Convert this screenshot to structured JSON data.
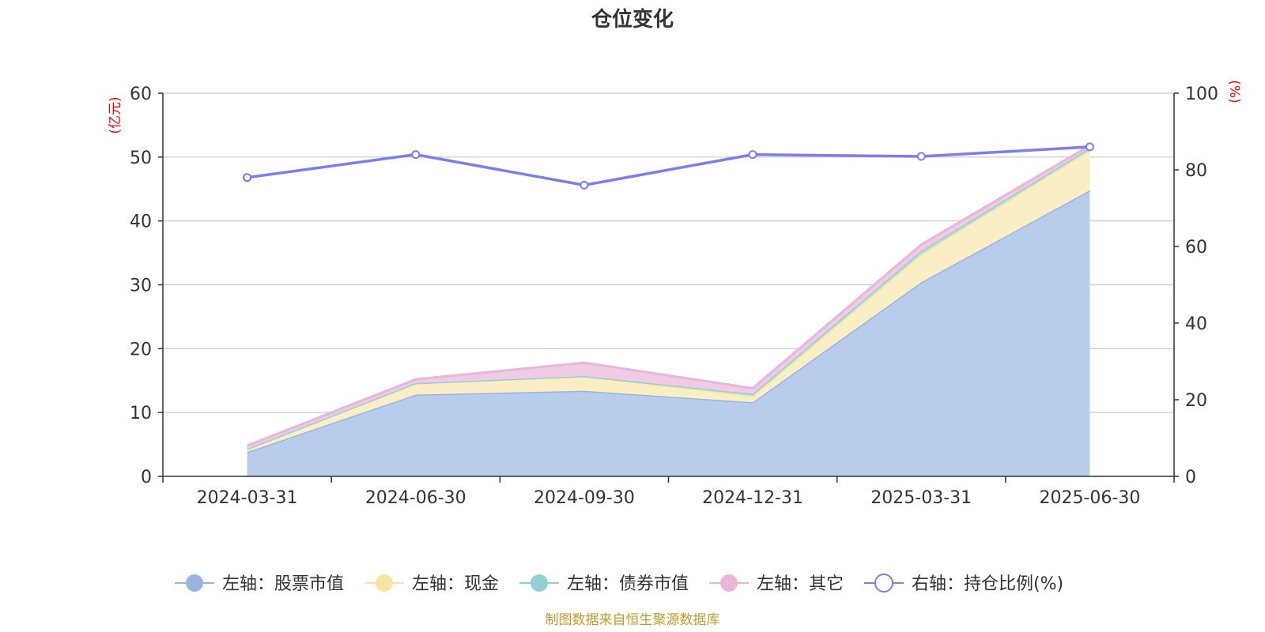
{
  "chart_data": {
    "type": "area",
    "title": "仓位变化",
    "x": [
      "2024-03-31",
      "2024-06-30",
      "2024-09-30",
      "2024-12-31",
      "2025-03-31",
      "2025-06-30"
    ],
    "left_axis": {
      "unit": "(亿元)",
      "ylim": [
        0,
        60
      ],
      "ticks": [
        0,
        10,
        20,
        30,
        40,
        50,
        60
      ]
    },
    "right_axis": {
      "unit": "(%)",
      "ylim": [
        0,
        100
      ],
      "ticks": [
        0,
        20,
        40,
        60,
        80,
        100
      ]
    },
    "stacked": true,
    "series": [
      {
        "name": "左轴：股票市值",
        "axis": "left",
        "color": "#9ab4e0",
        "fill": "#b8cdeb",
        "values": [
          3.8,
          12.8,
          13.4,
          11.6,
          30.4,
          44.8
        ]
      },
      {
        "name": "左轴：现金",
        "axis": "left",
        "color": "#f7e4a0",
        "fill": "#faefc4",
        "values": [
          0.5,
          1.8,
          2.3,
          1.0,
          4.4,
          6.3
        ]
      },
      {
        "name": "左轴：债券市值",
        "axis": "left",
        "color": "#92d0d2",
        "fill": "#b5e0e1",
        "values": [
          0.0,
          0.0,
          0.0,
          0.3,
          0.5,
          0.3
        ]
      },
      {
        "name": "左轴：其它",
        "axis": "left",
        "color": "#e8b6d8",
        "fill": "#efcbe4",
        "values": [
          0.5,
          0.6,
          2.1,
          0.9,
          1.0,
          0.4
        ]
      },
      {
        "name": "右轴：持仓比例(%)",
        "axis": "right",
        "type": "line",
        "color": "#7a7ef0",
        "values": [
          78.0,
          84.0,
          76.0,
          84.0,
          83.5,
          86.0
        ]
      }
    ],
    "grid": true,
    "legend_position": "bottom"
  },
  "footer": {
    "source": "制图数据来自恒生聚源数据库"
  }
}
